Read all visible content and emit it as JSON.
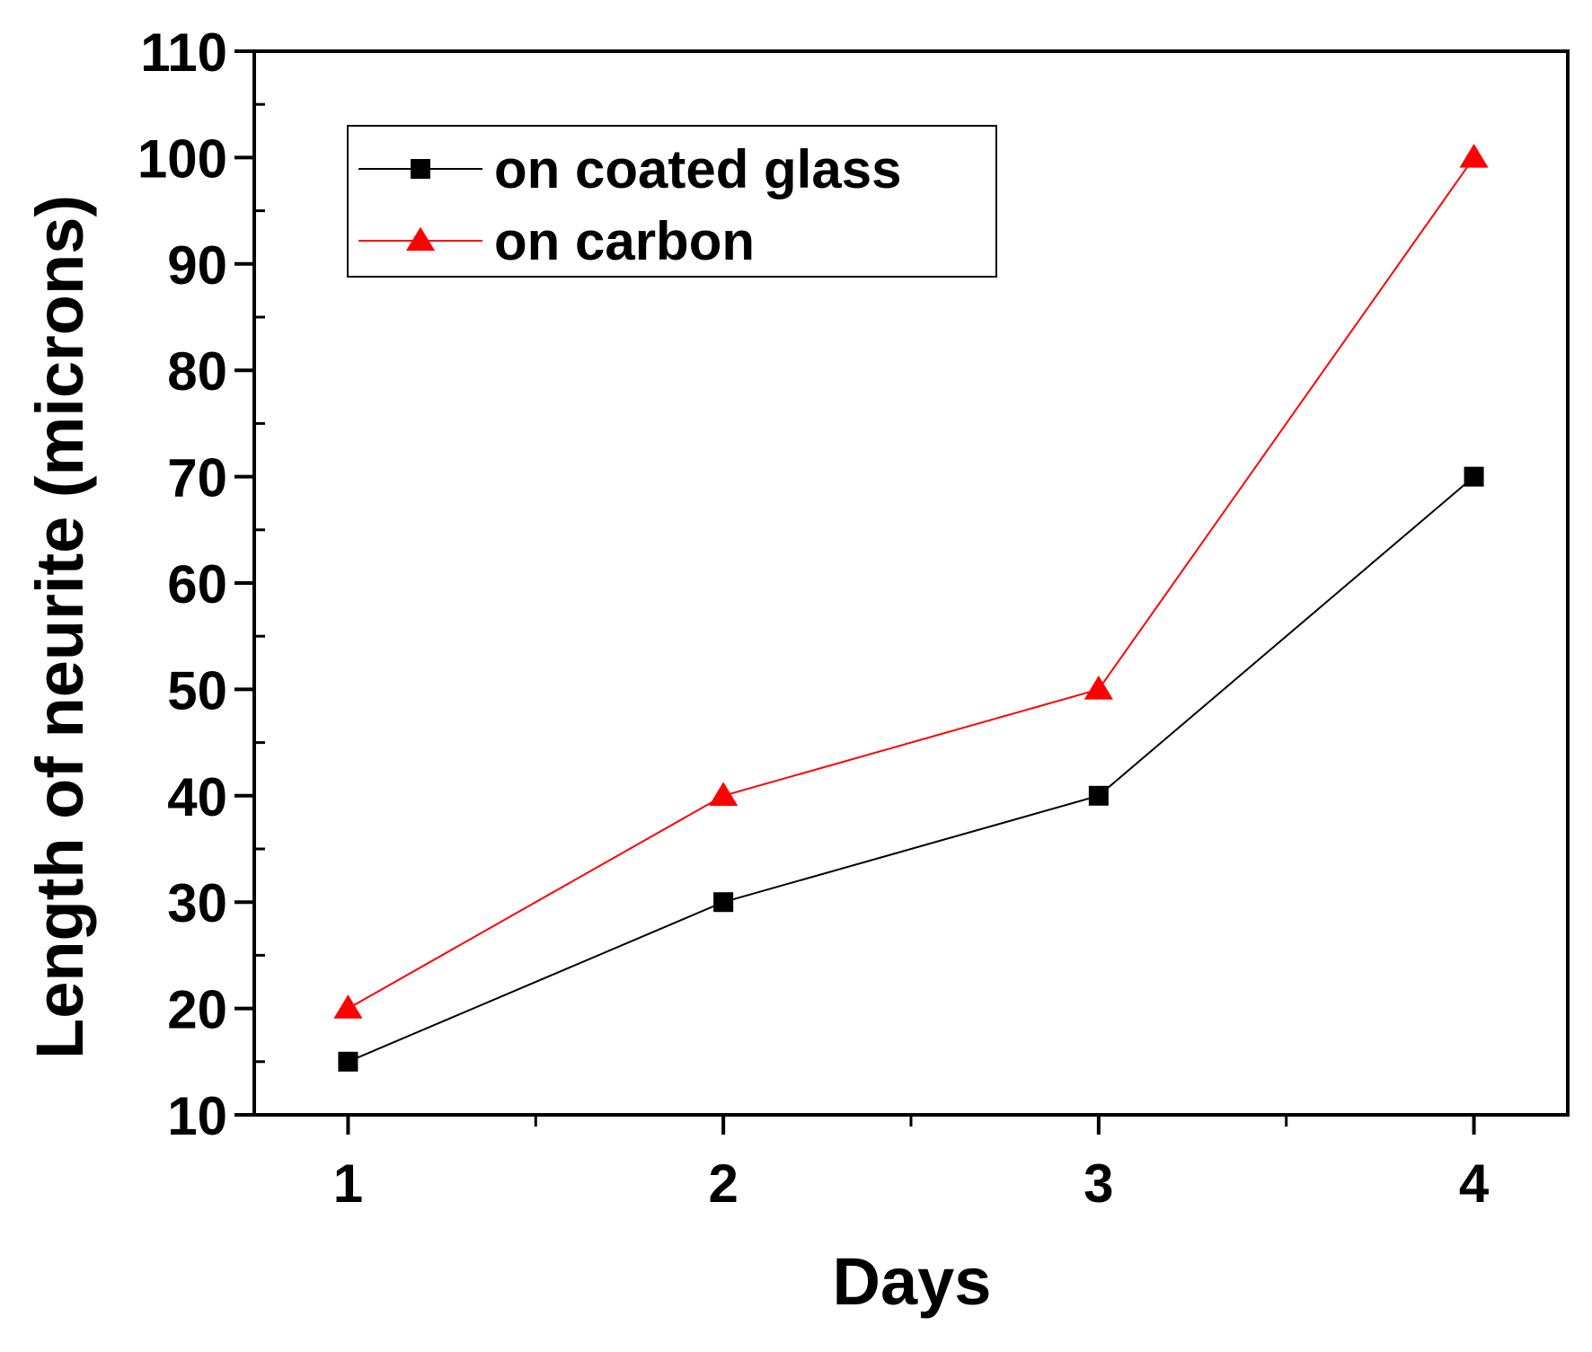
{
  "chart_data": {
    "type": "line",
    "title": "",
    "xlabel": "Days",
    "ylabel": "Length of neurite (microns)",
    "xlim": [
      0.75,
      4.25
    ],
    "ylim": [
      10,
      110
    ],
    "x_ticks": [
      1,
      2,
      3,
      4
    ],
    "x_tick_labels": [
      "1",
      "2",
      "3",
      "4"
    ],
    "x_minor_ticks": [
      1.5,
      2.5,
      3.5
    ],
    "y_ticks": [
      10,
      20,
      30,
      40,
      50,
      60,
      70,
      80,
      90,
      100,
      110
    ],
    "y_tick_labels": [
      "10",
      "20",
      "30",
      "40",
      "50",
      "60",
      "70",
      "80",
      "90",
      "100",
      "110"
    ],
    "y_minor_ticks": [
      15,
      25,
      35,
      45,
      55,
      65,
      75,
      85,
      95,
      105
    ],
    "grid": false,
    "legend_position": "top-left",
    "x": [
      1,
      2,
      3,
      4
    ],
    "series": [
      {
        "name": "on coated glass",
        "values": [
          15,
          30,
          40,
          70
        ],
        "color": "#000000",
        "marker": "square"
      },
      {
        "name": "on carbon",
        "values": [
          20,
          40,
          50,
          100
        ],
        "color": "#ff0000",
        "marker": "triangle"
      }
    ]
  }
}
